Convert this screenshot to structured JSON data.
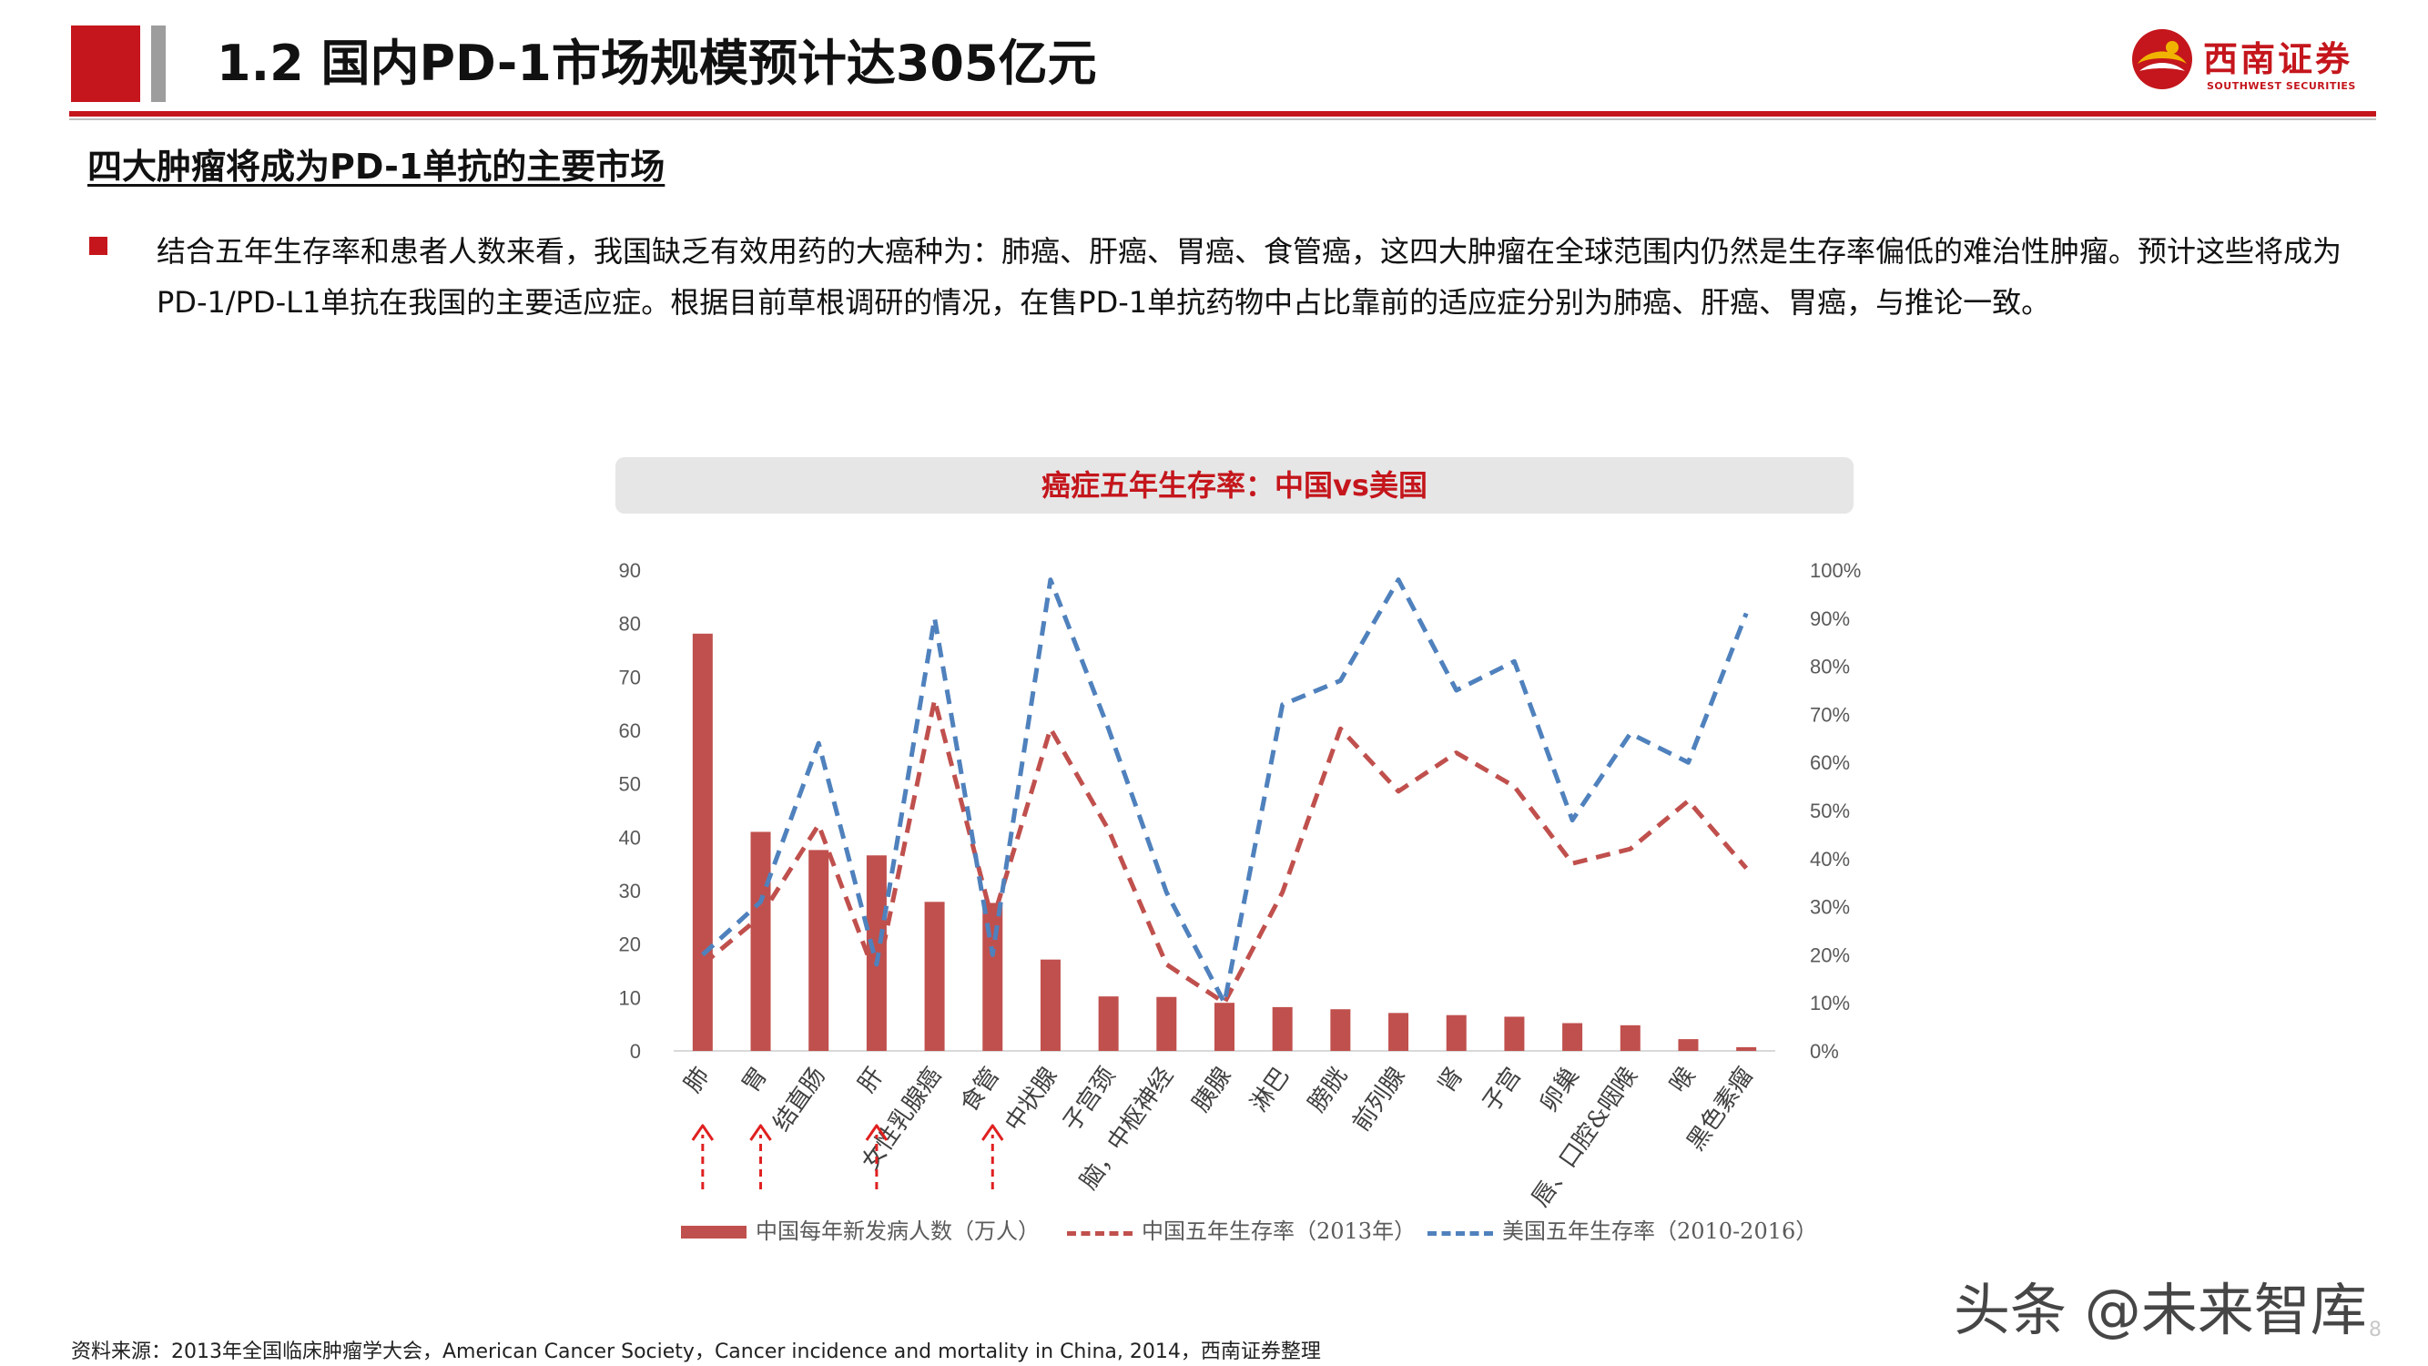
{
  "header": {
    "title": "1.2 国内PD-1市场规模预计达305亿元",
    "logo_cn": "西南证券",
    "logo_en": "SOUTHWEST SECURITIES"
  },
  "section": {
    "subheading": "四大肿瘤将成为PD-1单抗的主要市场",
    "bullet_text": "结合五年生存率和患者人数来看，我国缺乏有效用药的大癌种为：肺癌、肝癌、胃癌、食管癌，这四大肿瘤在全球范围内仍然是生存率偏低的难治性肿瘤。预计这些将成为PD-1/PD-L1单抗在我国的主要适应症。根据目前草根调研的情况，在售PD-1单抗药物中占比靠前的适应症分别为肺癌、肝癌、胃癌，与推论一致。"
  },
  "chart_data": {
    "type": "bar",
    "title": "癌症五年生存率：中国vs美国",
    "categories": [
      "肺",
      "胃",
      "结直肠",
      "肝",
      "女性乳腺癌",
      "食管",
      "中状腺",
      "子宫颈",
      "脑，中枢神经",
      "胰腺",
      "淋巴",
      "膀胱",
      "前列腺",
      "肾",
      "子宫",
      "卵巢",
      "唇、口腔&咽喉",
      "喉",
      "黑色素瘤"
    ],
    "series": [
      {
        "name": "中国每年新发病人数（万人）",
        "type": "bar",
        "axis": "left",
        "color": "#c0504d",
        "values": [
          78.1,
          41,
          37.6,
          36.6,
          27.9,
          27.7,
          17.1,
          10.2,
          10.1,
          9.0,
          8.2,
          7.8,
          7.1,
          6.7,
          6.4,
          5.2,
          4.8,
          2.2,
          0.7
        ]
      },
      {
        "name": "中国五年生存率（2013年）",
        "type": "line",
        "axis": "right",
        "style": "dashed",
        "color": "#c0504d",
        "values": [
          0.18,
          0.28,
          0.47,
          0.15,
          0.73,
          0.27,
          0.67,
          0.46,
          0.18,
          0.1,
          0.33,
          0.67,
          0.54,
          0.62,
          0.55,
          0.39,
          0.42,
          0.52,
          0.38
        ]
      },
      {
        "name": "美国五年生存率（2010-2016）",
        "type": "line",
        "axis": "right",
        "style": "dashed",
        "color": "#4f81bd",
        "values": [
          0.2,
          0.31,
          0.64,
          0.18,
          0.9,
          0.2,
          0.98,
          0.67,
          0.33,
          0.1,
          0.72,
          0.77,
          0.98,
          0.75,
          0.81,
          0.48,
          0.66,
          0.6,
          0.91
        ]
      }
    ],
    "y_left": {
      "min": 0,
      "max": 90,
      "ticks": [
        "0",
        "10",
        "20",
        "30",
        "40",
        "50",
        "60",
        "70",
        "80",
        "90"
      ]
    },
    "y_right": {
      "min": 0,
      "max": 1,
      "ticks": [
        "0%",
        "10%",
        "20%",
        "30%",
        "40%",
        "50%",
        "60%",
        "70%",
        "80%",
        "90%",
        "100%"
      ]
    },
    "highlight_categories": [
      "肺",
      "胃",
      "肝",
      "食管"
    ],
    "highlight_color": "#e02020",
    "grid": false,
    "legend_position": "bottom"
  },
  "footer": {
    "source": "资料来源：2013年全国临床肿瘤学大会，American Cancer Society，Cancer incidence and mortality in China, 2014，西南证券整理",
    "watermark": "头条 @未来智库",
    "page_number": "8"
  },
  "colors": {
    "brand_red": "#c4161c",
    "accent_gray": "#9d9d9d",
    "title_box": "#e6e6e6"
  }
}
